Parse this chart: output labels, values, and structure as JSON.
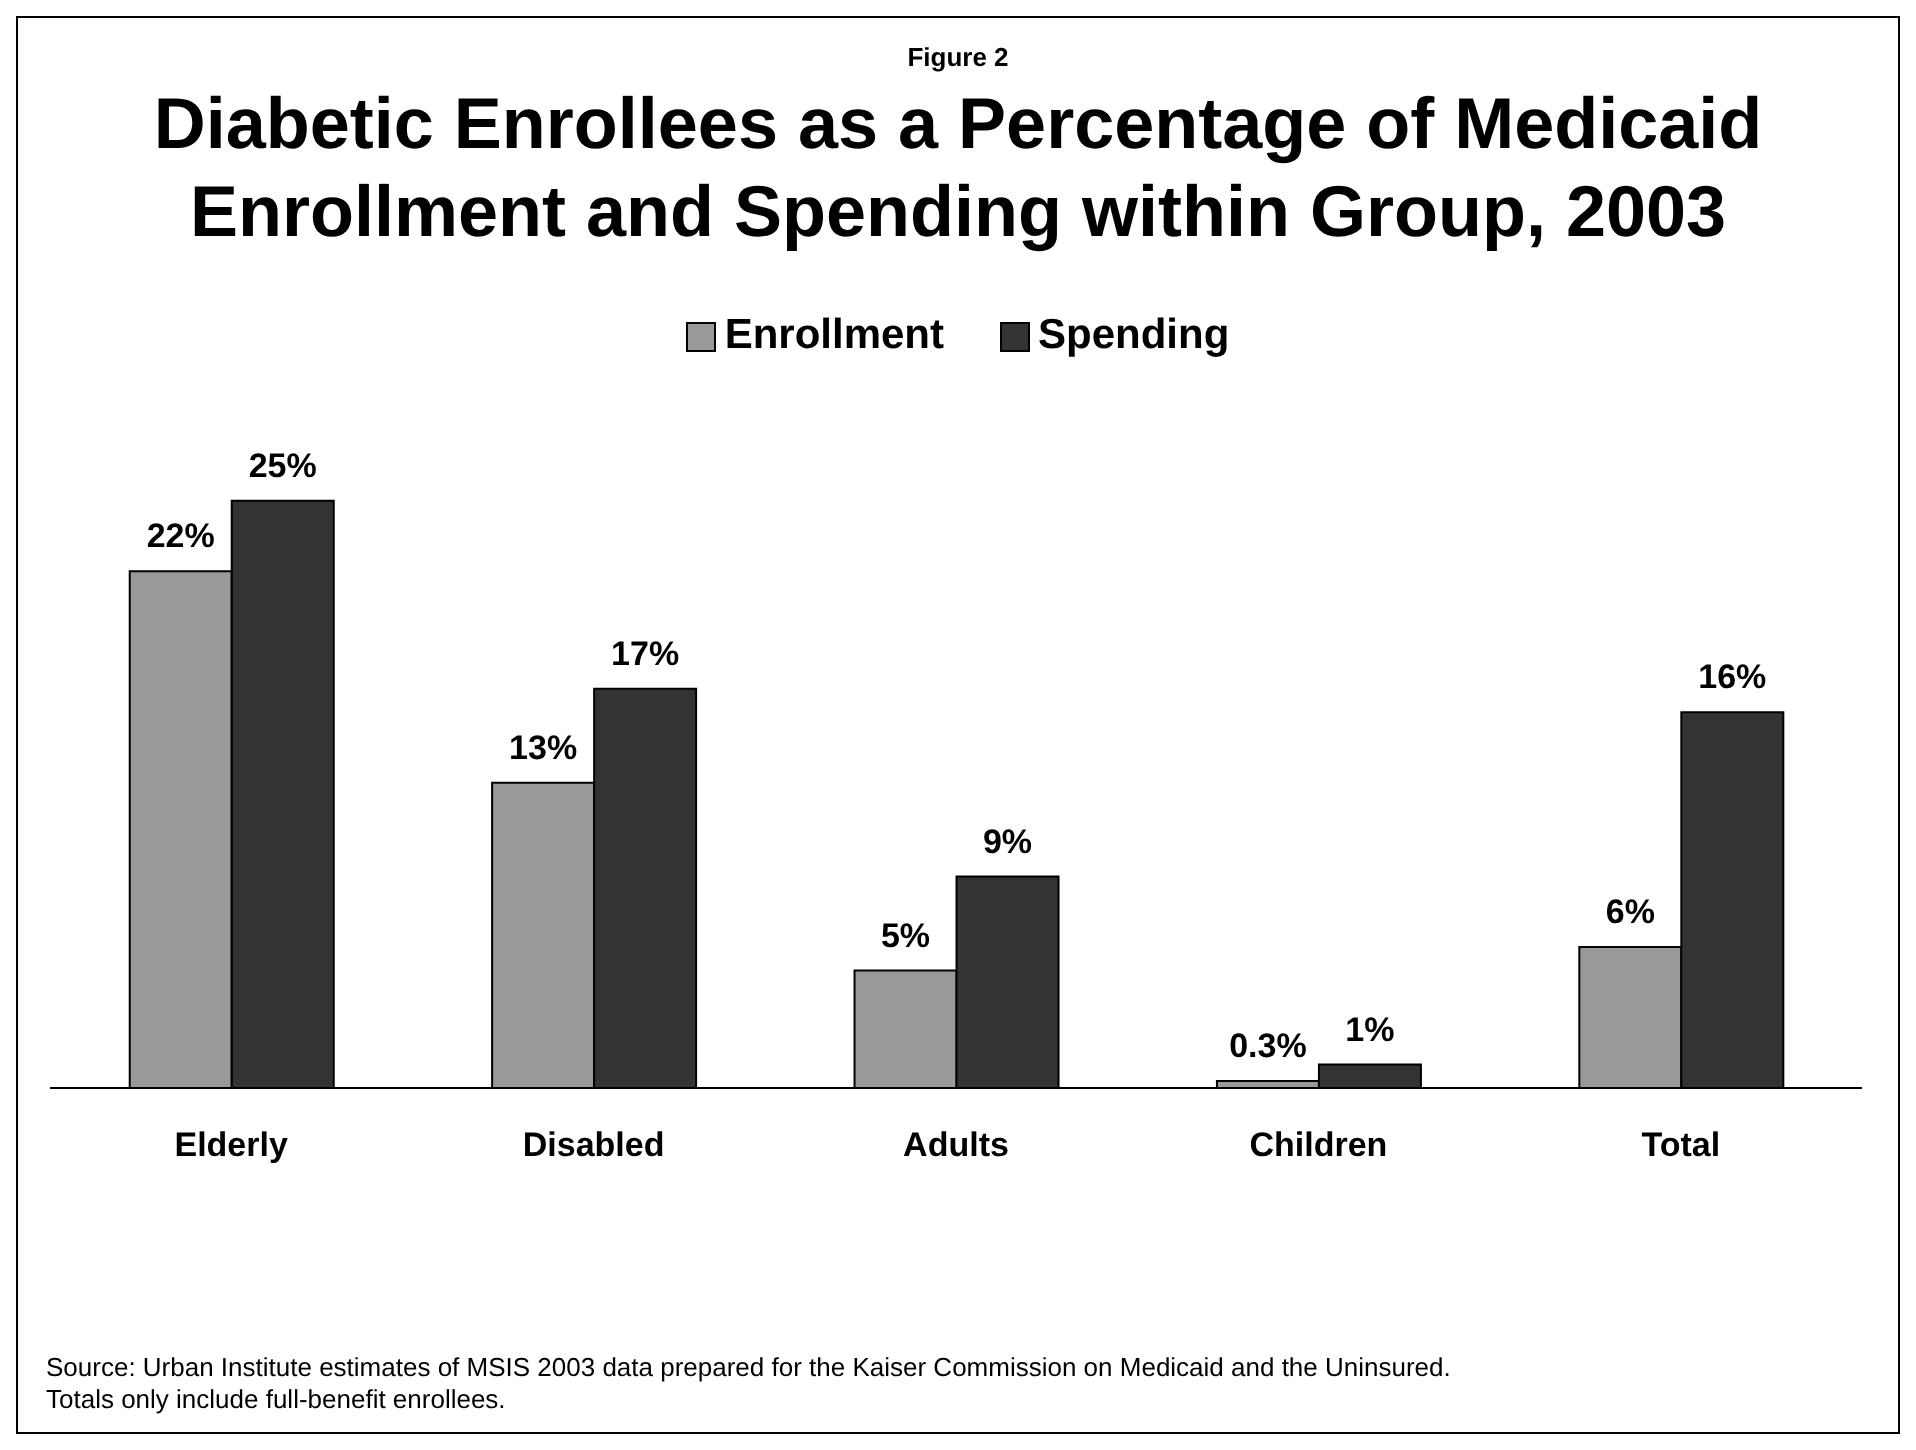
{
  "chart_data": {
    "type": "bar",
    "subtitle": "Figure 2",
    "title": "Diabetic Enrollees as a Percentage of Medicaid Enrollment and Spending within Group, 2003",
    "categories": [
      "Elderly",
      "Disabled",
      "Adults",
      "Children",
      "Total"
    ],
    "series": [
      {
        "name": "Enrollment",
        "color": "#999999",
        "values": [
          22,
          13,
          5,
          0.3,
          6
        ],
        "value_labels": [
          "22%",
          "13%",
          "5%",
          "0.3%",
          "6%"
        ]
      },
      {
        "name": "Spending",
        "color": "#333333",
        "values": [
          25,
          17,
          9,
          1,
          16
        ],
        "value_labels": [
          "25%",
          "17%",
          "9%",
          "1%",
          "16%"
        ]
      }
    ],
    "legend": "top",
    "grid": false,
    "annotations": [
      "Source: Urban Institute estimates of MSIS 2003 data prepared for the Kaiser Commission on Medicaid and the Uninsured.  Totals only include full-benefit enrollees."
    ]
  }
}
